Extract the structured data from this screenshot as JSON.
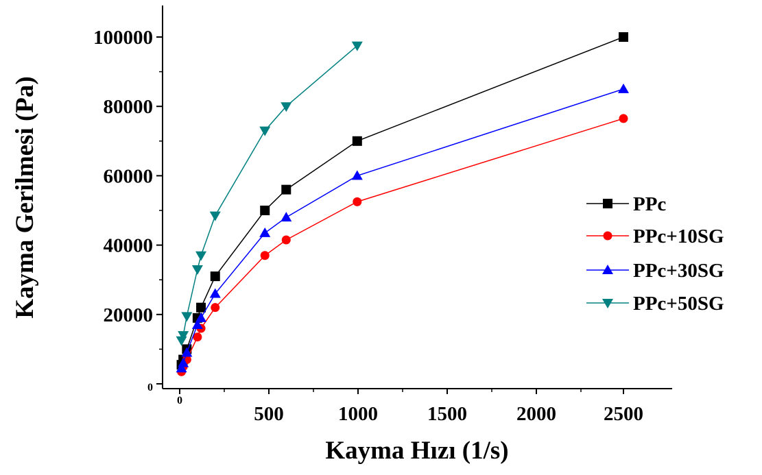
{
  "chart_data": {
    "type": "line",
    "xlabel": "Kayma Hızı (1/s)",
    "ylabel": "Kayma Gerilmesi (Pa)",
    "xlim": [
      -100,
      2750
    ],
    "ylim": [
      0,
      110000
    ],
    "x_ticks": [
      {
        "value": 0,
        "label": "0"
      },
      {
        "value": 500,
        "label": "500"
      },
      {
        "value": 1000,
        "label": "1000"
      },
      {
        "value": 1500,
        "label": "1500"
      },
      {
        "value": 2000,
        "label": "2000"
      },
      {
        "value": 2500,
        "label": "2500"
      }
    ],
    "y_ticks": [
      {
        "value": 0,
        "label": "0"
      },
      {
        "value": 20000,
        "label": "20000"
      },
      {
        "value": 40000,
        "label": "40000"
      },
      {
        "value": 60000,
        "label": "60000"
      },
      {
        "value": 80000,
        "label": "80000"
      },
      {
        "value": 100000,
        "label": "100000"
      }
    ],
    "legend_position": "right",
    "grid": false,
    "series": [
      {
        "name": "PPc",
        "color": "#000000",
        "marker": "square",
        "x": [
          10,
          20,
          40,
          100,
          120,
          200,
          480,
          600,
          1000,
          2500
        ],
        "y": [
          5500,
          7000,
          10000,
          19000,
          22000,
          31000,
          50000,
          56000,
          70000,
          100000
        ]
      },
      {
        "name": "PPc+10SG",
        "color": "#ff0000",
        "marker": "circle",
        "x": [
          10,
          20,
          40,
          100,
          120,
          200,
          480,
          600,
          1000,
          2500
        ],
        "y": [
          3500,
          5000,
          7000,
          13500,
          16000,
          22000,
          37000,
          41500,
          52500,
          76500
        ]
      },
      {
        "name": "PPc+30SG",
        "color": "#0000ff",
        "marker": "triangle-up",
        "x": [
          10,
          20,
          40,
          100,
          120,
          200,
          480,
          600,
          1000,
          2500
        ],
        "y": [
          4500,
          6000,
          9000,
          17000,
          19000,
          26000,
          43500,
          48000,
          60000,
          85000
        ]
      },
      {
        "name": "PPc+50SG",
        "color": "#008080",
        "marker": "triangle-down",
        "x": [
          10,
          20,
          40,
          100,
          120,
          200,
          480,
          600,
          1000
        ],
        "y": [
          12500,
          14000,
          19500,
          33000,
          37000,
          48500,
          73000,
          80000,
          97500
        ]
      }
    ]
  }
}
